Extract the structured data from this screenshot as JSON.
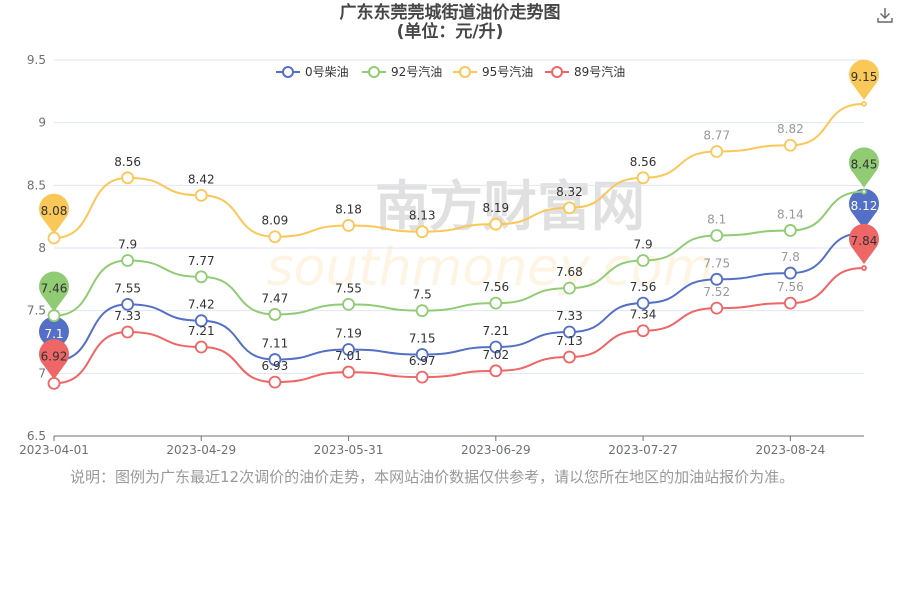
{
  "chart_data": {
    "type": "line",
    "title": "广东东莞莞城街道油价走势图",
    "subtitle": "(单位：元/升)",
    "xlabel": "",
    "ylabel": "",
    "ylim": [
      6.5,
      9.5
    ],
    "yticks": [
      "6.5",
      "7",
      "7.5",
      "8",
      "8.5",
      "9",
      "9.5"
    ],
    "xtick_labels": [
      "2023-04-01",
      "2023-04-29",
      "2023-05-31",
      "2023-06-29",
      "2023-07-27",
      "2023-08-24"
    ],
    "xtick_indices": [
      0,
      2,
      4,
      6,
      8,
      10
    ],
    "grid": true,
    "legend_position": "top-center",
    "series": [
      {
        "name": "0号柴油",
        "color": "#5470c6",
        "values": [
          7.1,
          7.55,
          7.42,
          7.11,
          7.19,
          7.15,
          7.21,
          7.33,
          7.56,
          7.75,
          7.8,
          8.12
        ]
      },
      {
        "name": "92号汽油",
        "color": "#91cc75",
        "values": [
          7.46,
          7.9,
          7.77,
          7.47,
          7.55,
          7.5,
          7.56,
          7.68,
          7.9,
          8.1,
          8.14,
          8.45
        ]
      },
      {
        "name": "95号汽油",
        "color": "#fac858",
        "values": [
          8.08,
          8.56,
          8.42,
          8.09,
          8.18,
          8.13,
          8.19,
          8.32,
          8.56,
          8.77,
          8.82,
          9.15
        ]
      },
      {
        "name": "89号汽油",
        "color": "#ee6666",
        "values": [
          6.92,
          7.33,
          7.21,
          6.93,
          7.01,
          6.97,
          7.02,
          7.13,
          7.34,
          7.52,
          7.56,
          7.84
        ]
      }
    ]
  },
  "watermark": {
    "cn": "南方财富网",
    "en": "southmoney.com"
  },
  "toolbar": {
    "download_icon": "download-icon"
  },
  "note": "说明：图例为广东最近12次调价的油价走势，本网站油价数据仅供参考，请以您所在地区的加油站报价为准。"
}
